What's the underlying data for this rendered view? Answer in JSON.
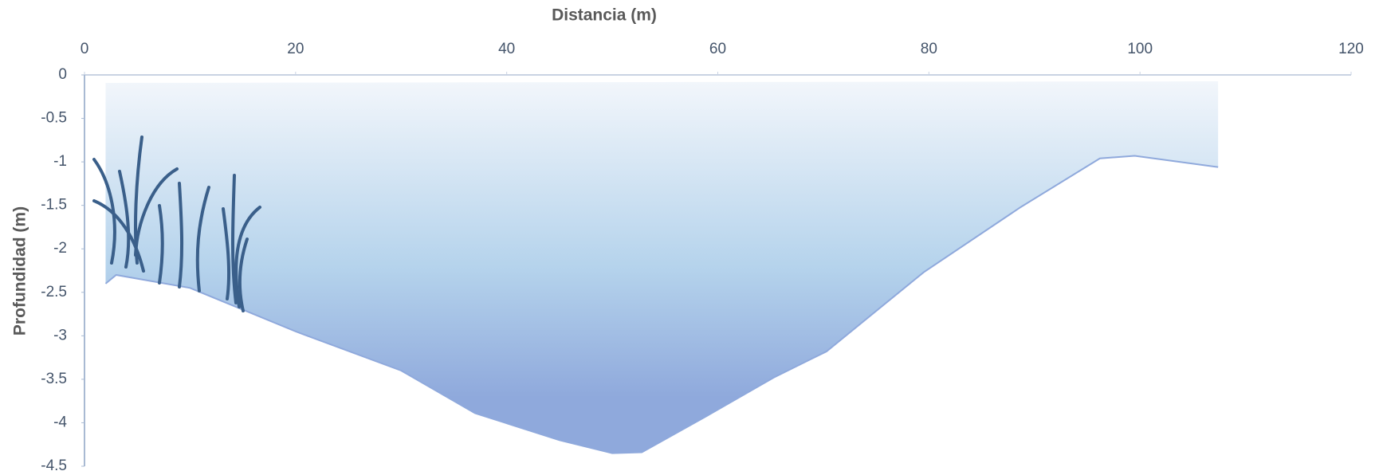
{
  "chart_data": {
    "type": "area",
    "xlabel": "Distancia (m)",
    "ylabel": "Profundidad (m)",
    "x": [
      2,
      3,
      10,
      15,
      20,
      30,
      37,
      45,
      50,
      52.8,
      58.7,
      65.3,
      70.3,
      79.5,
      88.7,
      96.2,
      99.5,
      107.4
    ],
    "values": [
      -2.4,
      -2.3,
      -2.45,
      -2.7,
      -2.95,
      -3.4,
      -3.89,
      -4.2,
      -4.35,
      -4.34,
      -3.94,
      -3.48,
      -3.18,
      -2.27,
      -1.52,
      -0.96,
      -0.93,
      -1.06
    ],
    "color": "#8fa9dc",
    "xlim": [
      0,
      120
    ],
    "xticks": [
      0,
      20,
      40,
      60,
      80,
      100,
      120
    ],
    "ylim": [
      -4.5,
      0
    ],
    "yticks": [
      0,
      -0.5,
      -1,
      -1.5,
      -2,
      -2.5,
      -3,
      -3.5,
      -4,
      -4.5
    ]
  }
}
